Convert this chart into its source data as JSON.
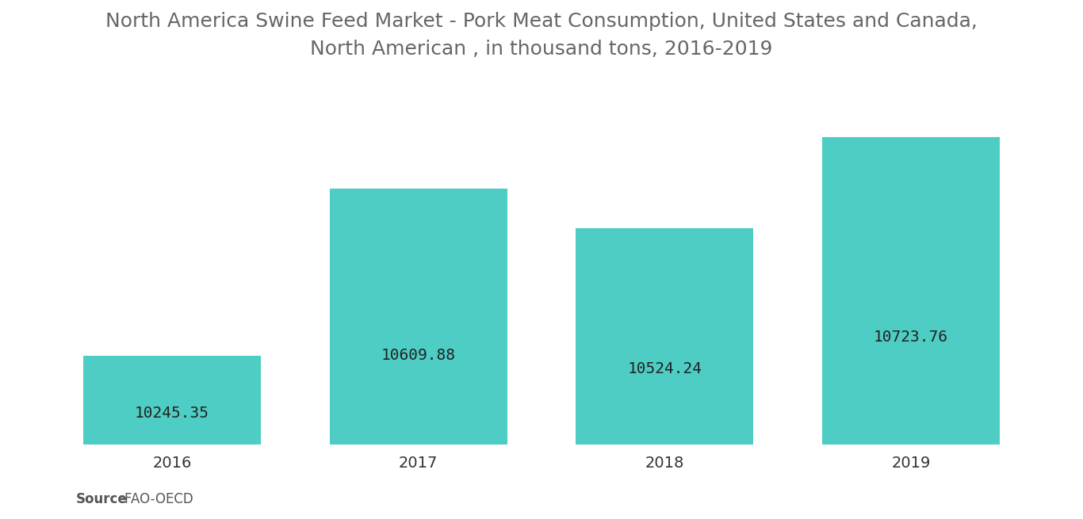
{
  "title": "North America Swine Feed Market - Pork Meat Consumption, United States and Canada,\nNorth American , in thousand tons, 2016-2019",
  "categories": [
    "2016",
    "2017",
    "2018",
    "2019"
  ],
  "values": [
    10245.35,
    10609.88,
    10524.24,
    10723.76
  ],
  "bar_color": "#4ECDC4",
  "label_color": "#222222",
  "title_color": "#666666",
  "background_color": "#ffffff",
  "ylim_min": 10050,
  "ylim_max": 10850,
  "bar_width": 0.72,
  "label_fontsize": 14,
  "title_fontsize": 18,
  "xtick_fontsize": 14,
  "source_bold": "Source",
  "source_rest": " :FAO-OECD",
  "source_fontsize": 12
}
